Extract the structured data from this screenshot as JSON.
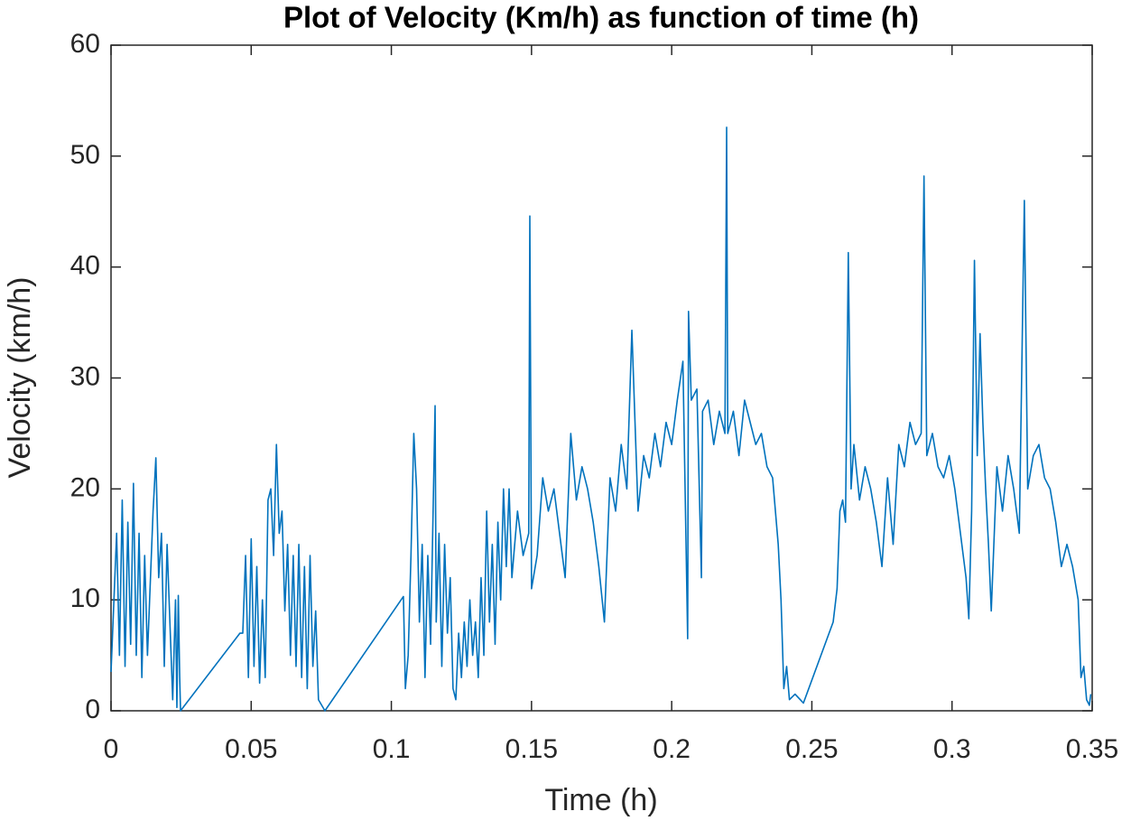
{
  "chart_data": {
    "type": "line",
    "title": "Plot of Velocity (Km/h) as function of time (h)",
    "x_label": "Time (h)",
    "y_label": "Velocity (km/h)",
    "color": "#0072bd",
    "xlim": [
      0,
      0.35
    ],
    "xticks": [
      0,
      0.05,
      0.1,
      0.15,
      0.2,
      0.25,
      0.3,
      0.35
    ],
    "ylim": [
      0,
      60
    ],
    "yticks": [
      0,
      10,
      20,
      30,
      40,
      50,
      60
    ],
    "grid": false,
    "x": [
      0,
      0.002,
      0.003,
      0.004,
      0.005,
      0.006,
      0.007,
      0.008,
      0.009,
      0.01,
      0.011,
      0.012,
      0.013,
      0.015,
      0.016,
      0.017,
      0.018,
      0.019,
      0.02,
      0.021,
      0.022,
      0.023,
      0.0235,
      0.024,
      0.0245,
      0.0248,
      0.046,
      0.047,
      0.048,
      0.049,
      0.05,
      0.051,
      0.052,
      0.053,
      0.054,
      0.055,
      0.056,
      0.057,
      0.058,
      0.059,
      0.06,
      0.061,
      0.062,
      0.063,
      0.064,
      0.065,
      0.066,
      0.067,
      0.068,
      0.069,
      0.07,
      0.071,
      0.072,
      0.073,
      0.074,
      0.0763,
      0.1043,
      0.105,
      0.106,
      0.107,
      0.108,
      0.109,
      0.11,
      0.111,
      0.112,
      0.113,
      0.114,
      0.1156,
      0.116,
      0.117,
      0.118,
      0.119,
      0.12,
      0.121,
      0.122,
      0.123,
      0.124,
      0.125,
      0.126,
      0.127,
      0.128,
      0.129,
      0.13,
      0.131,
      0.132,
      0.133,
      0.134,
      0.135,
      0.136,
      0.137,
      0.138,
      0.139,
      0.14,
      0.141,
      0.142,
      0.143,
      0.145,
      0.147,
      0.149,
      0.1494,
      0.15,
      0.152,
      0.154,
      0.156,
      0.158,
      0.16,
      0.162,
      0.164,
      0.166,
      0.168,
      0.17,
      0.172,
      0.174,
      0.176,
      0.178,
      0.18,
      0.182,
      0.184,
      0.1858,
      0.188,
      0.19,
      0.192,
      0.194,
      0.196,
      0.198,
      0.2,
      0.202,
      0.204,
      0.2057,
      0.206,
      0.207,
      0.209,
      0.2106,
      0.211,
      0.213,
      0.215,
      0.217,
      0.219,
      0.2196,
      0.22,
      0.222,
      0.224,
      0.226,
      0.228,
      0.23,
      0.232,
      0.234,
      0.236,
      0.238,
      0.239,
      0.24,
      0.241,
      0.242,
      0.244,
      0.247,
      0.2576,
      0.259,
      0.26,
      0.261,
      0.262,
      0.263,
      0.264,
      0.265,
      0.267,
      0.269,
      0.271,
      0.273,
      0.275,
      0.277,
      0.279,
      0.281,
      0.283,
      0.285,
      0.287,
      0.289,
      0.29,
      0.291,
      0.293,
      0.295,
      0.297,
      0.299,
      0.301,
      0.303,
      0.305,
      0.306,
      0.307,
      0.308,
      0.309,
      0.31,
      0.311,
      0.312,
      0.313,
      0.314,
      0.316,
      0.318,
      0.32,
      0.322,
      0.324,
      0.3258,
      0.327,
      0.329,
      0.331,
      0.333,
      0.335,
      0.337,
      0.339,
      0.341,
      0.343,
      0.345,
      0.346,
      0.347,
      0.348,
      0.349,
      0.3495
    ],
    "values": [
      3.5,
      16,
      5,
      19,
      4,
      17,
      6,
      20.5,
      5,
      16,
      3,
      14,
      5,
      18,
      22.8,
      12,
      16,
      4,
      15,
      8,
      1,
      10,
      0.3,
      10.4,
      3,
      0,
      7,
      7,
      14,
      3,
      15.5,
      4,
      13,
      2.5,
      10,
      3,
      19,
      20,
      14,
      24,
      16,
      18,
      9,
      15,
      5,
      14,
      4,
      15,
      3,
      13,
      2,
      14,
      4,
      9,
      1,
      0,
      10.3,
      2,
      5,
      14,
      25,
      20,
      8,
      15,
      3,
      14,
      6,
      27.5,
      8,
      16,
      4,
      15,
      7,
      12,
      2,
      1,
      7,
      3,
      8,
      4,
      10,
      5,
      8,
      3,
      12,
      5,
      18,
      8,
      15,
      6,
      17,
      10,
      20,
      13,
      20,
      12,
      18,
      14,
      16,
      44.6,
      11,
      14,
      21,
      18,
      20,
      16,
      12,
      25,
      19,
      22,
      20,
      17,
      13,
      8,
      21,
      18,
      24,
      20,
      34.3,
      18,
      23,
      21,
      25,
      22,
      26,
      24,
      28,
      31.5,
      6.5,
      36,
      28,
      29,
      12,
      27,
      28,
      24,
      27,
      25,
      52.6,
      25,
      27,
      23,
      28,
      26,
      24,
      25,
      22,
      21,
      15,
      10,
      2,
      4,
      1,
      1.5,
      0.7,
      8,
      11,
      18,
      19,
      17,
      41.3,
      20,
      24,
      19,
      22,
      20,
      17,
      13,
      21,
      15,
      24,
      22,
      26,
      24,
      25,
      48.2,
      23,
      25,
      22,
      21,
      23,
      20,
      16,
      12,
      8.3,
      18,
      40.6,
      23,
      34,
      26,
      20,
      15,
      9,
      22,
      18,
      23,
      20,
      16,
      46,
      20,
      23,
      24,
      21,
      20,
      17,
      13,
      15,
      13,
      10,
      3,
      4,
      1,
      0.5,
      1.5
    ]
  }
}
